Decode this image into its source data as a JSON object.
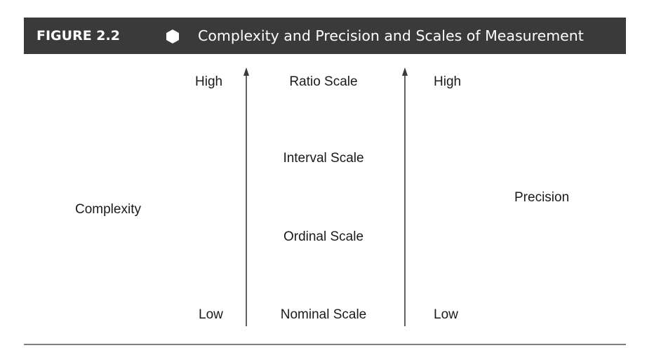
{
  "figure": {
    "number": "FIGURE 2.2",
    "title": "Complexity and Precision and Scales of Measurement"
  },
  "left_axis": {
    "label": "Complexity",
    "high": "High",
    "low": "Low"
  },
  "scales": [
    "Ratio Scale",
    "Interval Scale",
    "Ordinal Scale",
    "Nominal Scale"
  ],
  "right_axis": {
    "label": "Precision",
    "high": "High",
    "low": "Low"
  },
  "colors": {
    "header_bg": "#3a3a3a",
    "header_text": "#ffffff",
    "arrow": "#3a3a3a",
    "rule": "#555555"
  }
}
